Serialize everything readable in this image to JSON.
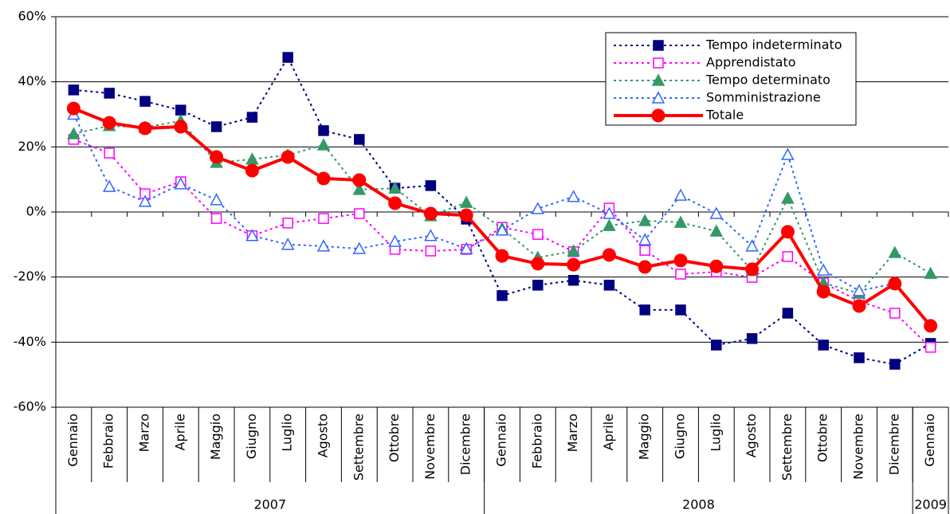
{
  "chart_data": {
    "type": "line",
    "categories": [
      "Gennaio",
      "Febbraio",
      "Marzo",
      "Aprile",
      "Maggio",
      "Giugno",
      "Luglio",
      "Agosto",
      "Settembre",
      "Ottobre",
      "Novembre",
      "Dicembre",
      "Gennaio",
      "Febbraio",
      "Marzo",
      "Aprile",
      "Maggio",
      "Giugno",
      "Luglio",
      "Agosto",
      "Settembre",
      "Ottobre",
      "Novembre",
      "Dicembre",
      "Gennaio"
    ],
    "x_groups": [
      {
        "label": "2007",
        "count": 12
      },
      {
        "label": "2008",
        "count": 12
      },
      {
        "label": "2009",
        "count": 1
      }
    ],
    "ylim": [
      -60,
      60
    ],
    "yticks": [
      {
        "value": -60,
        "label": "-60%"
      },
      {
        "value": -40,
        "label": "-40%"
      },
      {
        "value": -20,
        "label": "-20%"
      },
      {
        "value": 0,
        "label": "0%"
      },
      {
        "value": 20,
        "label": "20%"
      },
      {
        "value": 40,
        "label": "40%"
      },
      {
        "value": 60,
        "label": "60%"
      }
    ],
    "grid": true,
    "legend": "top-right",
    "series": [
      {
        "name": "Tempo indeterminato",
        "color": "#000080",
        "marker": "square",
        "dashed": true,
        "values": [
          37.5,
          36.5,
          34,
          31.3,
          26.2,
          29.1,
          47.5,
          25,
          22.3,
          7.3,
          8.1,
          -2.2,
          -25.7,
          -22.5,
          -21,
          -22.5,
          -30.1,
          -30.1,
          -40.9,
          -38.9,
          -31.1,
          -40.9,
          -44.8,
          -46.8,
          -40.4
        ]
      },
      {
        "name": "Apprendistato",
        "color": "#ff00ff",
        "marker": "square-open",
        "dashed": true,
        "values": [
          22.3,
          18.1,
          5.6,
          9.3,
          -2,
          -7.3,
          -3.4,
          -2,
          -0.5,
          -11.5,
          -12,
          -11.5,
          -4.7,
          -6.9,
          -12.2,
          1.2,
          -11.8,
          -19.1,
          -18.4,
          -20.1,
          -13.7,
          -21.8,
          -27.4,
          -31.1,
          -41.6
        ]
      },
      {
        "name": "Tempo determinato",
        "color": "#339966",
        "marker": "triangle",
        "dashed": true,
        "values": [
          24,
          26.5,
          26,
          28,
          15.2,
          16.2,
          17.5,
          20.6,
          6.9,
          7.3,
          -1.2,
          2.9,
          -5.1,
          -14,
          -12,
          -4.2,
          -2.7,
          -3.2,
          -5.9,
          -18,
          4.2,
          -21.8,
          -25,
          -12.5,
          -18.9
        ]
      },
      {
        "name": "Somministrazione",
        "color": "#3366ff",
        "marker": "triangle-open",
        "dashed": true,
        "values": [
          30,
          7.8,
          3.2,
          8.6,
          3.7,
          -7.3,
          -10,
          -10.5,
          -11.3,
          -9.1,
          -7.3,
          -11.3,
          -5.6,
          1,
          4.7,
          -0.5,
          -8.6,
          5.1,
          -0.5,
          -10.5,
          17.6,
          -17.9,
          -24.2,
          -22,
          null
        ]
      },
      {
        "name": "Totale",
        "color": "#ff0000",
        "marker": "circle",
        "dashed": false,
        "values": [
          31.8,
          27.4,
          25.7,
          26.2,
          16.9,
          12.7,
          16.9,
          10.3,
          9.8,
          2.7,
          -0.5,
          -1,
          -13.5,
          -15.9,
          -16.2,
          -13.2,
          -16.9,
          -14.9,
          -16.7,
          -17.6,
          -6.1,
          -24.5,
          -28.9,
          -22,
          -35
        ]
      }
    ]
  }
}
